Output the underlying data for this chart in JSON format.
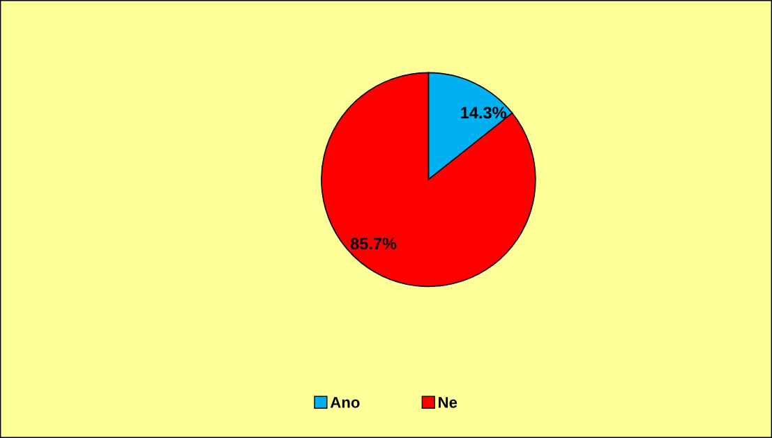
{
  "chart_data": {
    "type": "pie",
    "categories": [
      "Ano",
      "Ne"
    ],
    "values": [
      14.3,
      85.7
    ],
    "colors": [
      "#00b0f0",
      "#ff0000"
    ],
    "value_labels": [
      "14.3%",
      "85.7%"
    ],
    "legend": "bottom"
  }
}
